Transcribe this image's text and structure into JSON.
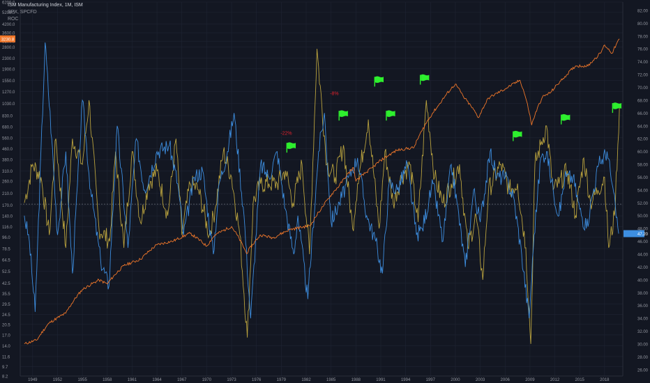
{
  "legend": {
    "title": "ISM Manufacturing Index, 1M, ISM",
    "compare": "SPX, SPCFD",
    "indicator": "ROC"
  },
  "colors": {
    "background": "#131722",
    "grid": "#1f2433",
    "ism": "#3d8ee0",
    "spx": "#f0772a",
    "roc": "#b9a23e",
    "flag": "#2eef2e",
    "annotation": "#e0232e",
    "axis_text": "#9598a1",
    "dashed_line": "#6b6f7a"
  },
  "chart_data": {
    "type": "line",
    "title": "ISM Manufacturing Index, 1M, ISM",
    "x_ticks": [
      "1949",
      "1952",
      "1955",
      "1958",
      "1961",
      "1964",
      "1967",
      "1970",
      "1973",
      "1976",
      "1979",
      "1982",
      "1985",
      "1988",
      "1991",
      "1994",
      "1997",
      "2000",
      "2003",
      "2006",
      "2009",
      "2012",
      "2015",
      "2018"
    ],
    "xlim": [
      1947.5,
      2020.2
    ],
    "left_axis": {
      "scale": "log",
      "ylim": [
        8.2,
        6200
      ],
      "ticks": [
        "6200.0",
        "5200.0",
        "4200.0",
        "3600.0",
        "3100.0",
        "2800.0",
        "2300.0",
        "1900.0",
        "1550.0",
        "1270.0",
        "1030.0",
        "830.0",
        "680.0",
        "560.0",
        "460.0",
        "380.0",
        "310.0",
        "260.0",
        "210.0",
        "170.0",
        "140.0",
        "116.0",
        "96.0",
        "78.5",
        "64.5",
        "52.5",
        "42.5",
        "35.5",
        "29.5",
        "24.5",
        "20.5",
        "17.0",
        "14.0",
        "11.6",
        "9.7",
        "8.2"
      ],
      "current_value_label": "3230.8"
    },
    "right_axis": {
      "scale": "linear",
      "ylim": [
        25,
        83.3
      ],
      "ticks": [
        "82.00",
        "80.00",
        "78.00",
        "76.00",
        "74.00",
        "72.00",
        "70.00",
        "68.00",
        "66.00",
        "64.00",
        "62.00",
        "60.00",
        "58.00",
        "56.00",
        "54.00",
        "52.00",
        "50.00",
        "48.00",
        "46.00",
        "44.00",
        "42.00",
        "40.00",
        "38.00",
        "36.00",
        "34.00",
        "32.00",
        "30.00",
        "28.00",
        "26.00"
      ],
      "current_value_label": "47.20",
      "reference_line": 51.8
    },
    "series": [
      {
        "name": "SPX, SPCFD",
        "x": [
          1948,
          1949.5,
          1951,
          1953,
          1955,
          1957,
          1958,
          1960,
          1962,
          1964,
          1966,
          1968,
          1970,
          1971,
          1973,
          1974.8,
          1976.5,
          1978,
          1980,
          1982.5,
          1984,
          1986,
          1987.7,
          1988,
          1990,
          1991,
          1993,
          1995,
          1996,
          1998,
          2000,
          2001,
          2002.8,
          2004,
          2006,
          2007.8,
          2009.2,
          2010.5,
          2011.5,
          2013,
          2014.5,
          2016,
          2017.5,
          2018,
          2018.9,
          2019.8
        ],
        "values": [
          14.5,
          15.5,
          21,
          25,
          38,
          45,
          42,
          58,
          65,
          84,
          90,
          103,
          82,
          100,
          116,
          72,
          100,
          95,
          110,
          118,
          165,
          240,
          330,
          260,
          330,
          375,
          450,
          470,
          640,
          1000,
          1450,
          1150,
          800,
          1130,
          1330,
          1550,
          700,
          1150,
          1250,
          1600,
          2000,
          2000,
          2500,
          2900,
          2500,
          3230
        ]
      },
      {
        "name": "ISM Manufacturing Index",
        "x": [
          1948,
          1948.6,
          1949.3,
          1950.5,
          1951.3,
          1952,
          1953,
          1953.8,
          1955,
          1956,
          1957.2,
          1958.2,
          1959.2,
          1960.5,
          1961.5,
          1962.5,
          1964,
          1965.5,
          1966.5,
          1967.2,
          1968.5,
          1969.5,
          1970.8,
          1971.5,
          1972.5,
          1973.3,
          1974.5,
          1975.3,
          1976.5,
          1977.5,
          1978.5,
          1979.5,
          1980.5,
          1981,
          1982.2,
          1983.5,
          1984.2,
          1985,
          1986,
          1987.5,
          1988.2,
          1989.3,
          1990.4,
          1991.2,
          1992,
          1993,
          1994.2,
          1995.3,
          1996,
          1997.3,
          1998.5,
          1999.5,
          2000.2,
          2001.2,
          2002.2,
          2003,
          2004.2,
          2005,
          2006,
          2007,
          2008,
          2008.9,
          2009.5,
          2010.3,
          2011,
          2011.8,
          2012.5,
          2013.2,
          2014.2,
          2015,
          2015.8,
          2016.5,
          2017.3,
          2018.3,
          2018.9,
          2019.7
        ],
        "values": [
          50,
          46,
          35,
          77,
          62,
          47,
          60,
          41,
          68,
          54,
          43,
          39,
          64,
          45,
          62,
          54,
          60,
          61,
          55,
          47,
          56,
          57,
          44,
          55,
          60,
          66,
          50,
          34,
          58,
          56,
          60,
          51,
          44,
          50,
          37,
          60,
          66,
          49,
          52,
          57,
          59,
          50,
          46,
          41,
          55,
          54,
          58,
          47,
          48,
          55,
          46,
          58,
          52,
          42,
          54,
          49,
          60,
          56,
          56,
          53,
          44,
          34,
          47,
          59,
          60,
          54,
          50,
          56,
          56,
          51,
          48,
          53,
          58,
          60,
          55,
          47.2
        ]
      },
      {
        "name": "ROC",
        "x": [
          1948,
          1949,
          1950,
          1951,
          1951.8,
          1953,
          1953.8,
          1955,
          1955.8,
          1957,
          1958.3,
          1959,
          1960,
          1961,
          1962,
          1963,
          1964,
          1965.3,
          1966.3,
          1967,
          1968,
          1969,
          1970.3,
          1971,
          1972,
          1973,
          1974,
          1974.9,
          1975.6,
          1976.5,
          1977.5,
          1978.5,
          1979.5,
          1980.4,
          1981.5,
          1982.4,
          1983.3,
          1984.5,
          1985.5,
          1986.5,
          1987.6,
          1988.2,
          1989.5,
          1990.8,
          1991.5,
          1992.5,
          1993.5,
          1994.5,
          1995.5,
          1996.5,
          1997.5,
          1998.5,
          1999.5,
          2000.5,
          2001.5,
          2002.5,
          2003.3,
          2004,
          2005.5,
          2006.5,
          2007.5,
          2008.5,
          2009.1,
          2009.6,
          2010.3,
          2011,
          2011.8,
          2012.5,
          2013.5,
          2014.5,
          2015.5,
          2016.3,
          2017.2,
          2018,
          2018.5,
          2019.2,
          2019.8
        ],
        "values": [
          52,
          58,
          56,
          47,
          62,
          45,
          62,
          58,
          68,
          48,
          46,
          60,
          45,
          60,
          49,
          55,
          57,
          50,
          62,
          47,
          55,
          54,
          47,
          51,
          60,
          56,
          47,
          31,
          52,
          55,
          55,
          55,
          57,
          52,
          58,
          44,
          76,
          58,
          56,
          61,
          48,
          55,
          65,
          48,
          60,
          52,
          56,
          58,
          49,
          68,
          56,
          52,
          55,
          58,
          45,
          50,
          40,
          54,
          58,
          54,
          55,
          45,
          30,
          58,
          61,
          64,
          54,
          55,
          57,
          50,
          59,
          52,
          54,
          56,
          45,
          50,
          67
        ]
      }
    ],
    "annotations": [
      {
        "type": "flag",
        "x": 1980.2,
        "y": 60.7
      },
      {
        "type": "flag",
        "x": 1986.5,
        "y": 65.7
      },
      {
        "type": "flag",
        "x": 1990.8,
        "y": 71
      },
      {
        "type": "flag",
        "x": 1992.2,
        "y": 65.7
      },
      {
        "type": "flag",
        "x": 1996.3,
        "y": 71.3
      },
      {
        "type": "flag",
        "x": 2007.5,
        "y": 62.5
      },
      {
        "type": "flag",
        "x": 2013.3,
        "y": 65.1
      },
      {
        "type": "flag",
        "x": 2019.5,
        "y": 66.9
      },
      {
        "type": "text",
        "text": "-22%",
        "x": 1979.6,
        "y": 62.6
      },
      {
        "type": "text",
        "text": "-8%",
        "x": 1985.4,
        "y": 68.8
      }
    ]
  }
}
